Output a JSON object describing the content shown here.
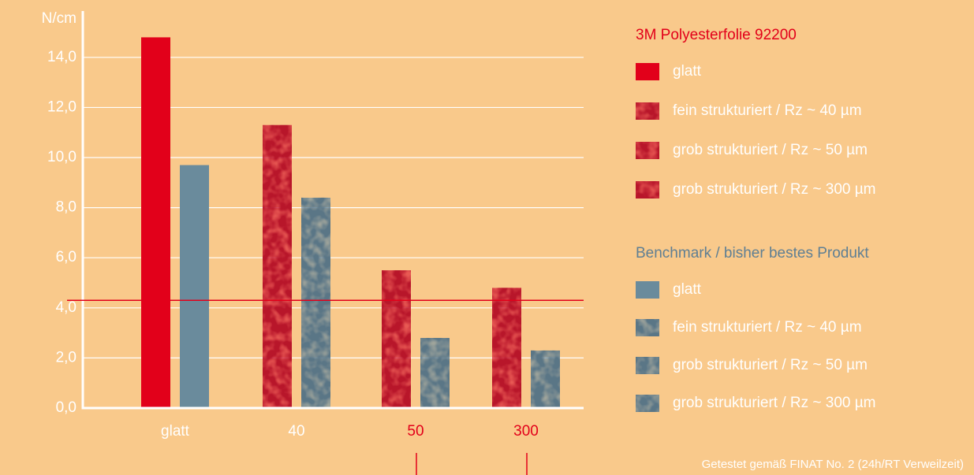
{
  "chart_data": {
    "type": "bar",
    "y_label": "N/cm",
    "categories": [
      "glatt",
      "40",
      "50",
      "300"
    ],
    "category_colors": [
      "#ffffff",
      "#ffffff",
      "#e2001a",
      "#e2001a"
    ],
    "textured": [
      false,
      true,
      true,
      true
    ],
    "series": [
      {
        "name": "3M Polyesterfolie 92200",
        "title_color": "#e2001a",
        "colors": [
          "#e2001a",
          "#b8122c",
          "#b8122c",
          "#b8122c"
        ],
        "values": [
          14.8,
          11.3,
          5.5,
          4.8
        ],
        "legend_entries": [
          "glatt",
          "fein strukturiert / Rz ~ 40 µm",
          "grob strukturiert / Rz ~ 50 µm",
          "grob strukturiert / Rz ~ 300 µm"
        ]
      },
      {
        "name": "Benchmark / bisher bestes Produkt",
        "title_color": "#5f7f93",
        "colors": [
          "#6a8b9c",
          "#5a7686",
          "#5a7686",
          "#5a7686"
        ],
        "values": [
          9.7,
          8.4,
          2.8,
          2.3
        ],
        "legend_entries": [
          "glatt",
          "fein strukturiert / Rz ~ 40 µm",
          "grob strukturiert / Rz ~ 50 µm",
          "grob strukturiert / Rz ~ 300 µm"
        ]
      }
    ],
    "reference_line": 4.3,
    "reference_color": "#e2001a",
    "ylim": [
      0,
      15.85
    ],
    "yticks": [
      {
        "value": 0,
        "label": "0,0"
      },
      {
        "value": 2,
        "label": "2,0"
      },
      {
        "value": 4,
        "label": "4,0"
      },
      {
        "value": 6,
        "label": "6,0"
      },
      {
        "value": 8,
        "label": "8,0"
      },
      {
        "value": 10,
        "label": "10,0"
      },
      {
        "value": 12,
        "label": "12,0"
      },
      {
        "value": 14,
        "label": "14,0"
      }
    ],
    "grid": true,
    "footnote": "Getestet gemäß FINAT No. 2 (24h/RT Verweilzeit)"
  }
}
